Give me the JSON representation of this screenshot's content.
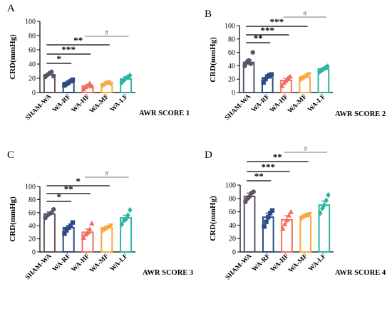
{
  "colors": {
    "SHAM-WA": "#5e5168",
    "WA-RF": "#2b4a87",
    "WA-HF": "#f36c5d",
    "WA-MF": "#f7a83f",
    "WA-LF": "#2bb5a0",
    "axis": "#000000",
    "sig_line": "#000000",
    "hash_line": "#7a7a7a"
  },
  "chart_data": [
    {
      "type": "bar",
      "panel_label": "A",
      "score_label": "AWR SCORE 1",
      "ylabel": "CRD(mmHg)",
      "ylim": [
        0,
        100
      ],
      "yticks": [
        0,
        20,
        40,
        60,
        80,
        100
      ],
      "categories": [
        "SHAM-WA",
        "WA-RF",
        "WA-HF",
        "WA-MF",
        "WA-LF"
      ],
      "values": [
        25,
        14,
        9,
        12,
        19
      ],
      "errors": [
        2,
        2,
        2,
        2,
        3
      ],
      "markers": [
        "circle",
        "square",
        "triangle",
        "triangle-down",
        "diamond"
      ],
      "points": [
        [
          22,
          25,
          27,
          29,
          23
        ],
        [
          10,
          12,
          14,
          16,
          18
        ],
        [
          5,
          8,
          10,
          13,
          9
        ],
        [
          9,
          11,
          13,
          14,
          12
        ],
        [
          14,
          17,
          20,
          22,
          24
        ]
      ],
      "brackets": [
        {
          "from": 0,
          "to": 1,
          "label": "*",
          "y": 41,
          "style": "sig"
        },
        {
          "from": 0,
          "to": 2,
          "label": "***",
          "y": 54,
          "style": "sig"
        },
        {
          "from": 0,
          "to": 3,
          "label": "**",
          "y": 67,
          "style": "sig"
        },
        {
          "from": 2,
          "to": 4,
          "label": "#",
          "y": 79,
          "style": "hash"
        }
      ]
    },
    {
      "type": "bar",
      "panel_label": "B",
      "score_label": "AWR SCORE 2",
      "ylabel": "CRD(mmHg)",
      "ylim": [
        0,
        100
      ],
      "yticks": [
        0,
        20,
        40,
        60,
        80,
        100
      ],
      "categories": [
        "SHAM-WA",
        "WA-RF",
        "WA-HF",
        "WA-MF",
        "WA-LF"
      ],
      "values": [
        45,
        22,
        18,
        23,
        35
      ],
      "errors": [
        4,
        3,
        3,
        2,
        2
      ],
      "markers": [
        "circle",
        "square",
        "triangle",
        "triangle-down",
        "diamond"
      ],
      "points": [
        [
          40,
          45,
          48,
          43,
          60
        ],
        [
          15,
          20,
          24,
          26,
          27
        ],
        [
          10,
          15,
          18,
          22,
          24
        ],
        [
          19,
          21,
          23,
          25,
          27
        ],
        [
          31,
          33,
          35,
          37,
          39
        ]
      ],
      "brackets": [
        {
          "from": 0,
          "to": 1,
          "label": "**",
          "y": 70,
          "style": "sig"
        },
        {
          "from": 0,
          "to": 2,
          "label": "***",
          "y": 81,
          "style": "sig"
        },
        {
          "from": 0,
          "to": 3,
          "label": "***",
          "y": 93,
          "style": "sig"
        },
        {
          "from": 2,
          "to": 4,
          "label": "#",
          "y": 106,
          "style": "hash"
        }
      ]
    },
    {
      "type": "bar",
      "panel_label": "C",
      "score_label": "AWR SCORE 3",
      "ylabel": "CRD(mmHg)",
      "ylim": [
        0,
        100
      ],
      "yticks": [
        0,
        20,
        40,
        60,
        80,
        100
      ],
      "categories": [
        "SHAM-WA",
        "WA-RF",
        "WA-HF",
        "WA-MF",
        "WA-LF"
      ],
      "values": [
        58,
        37,
        30,
        37,
        52
      ],
      "errors": [
        3,
        3,
        5,
        2,
        4
      ],
      "markers": [
        "circle",
        "square",
        "triangle",
        "triangle-down",
        "diamond"
      ],
      "points": [
        [
          52,
          56,
          58,
          60,
          65
        ],
        [
          28,
          33,
          37,
          40,
          45
        ],
        [
          22,
          27,
          30,
          35,
          44
        ],
        [
          32,
          34,
          36,
          38,
          40
        ],
        [
          42,
          48,
          50,
          56,
          64
        ]
      ],
      "brackets": [
        {
          "from": 0,
          "to": 1,
          "label": "*",
          "y": 71,
          "style": "sig"
        },
        {
          "from": 0,
          "to": 2,
          "label": "**",
          "y": 82,
          "style": "sig"
        },
        {
          "from": 0,
          "to": 3,
          "label": "*",
          "y": 93,
          "style": "sig"
        },
        {
          "from": 2,
          "to": 4,
          "label": "#",
          "y": 105,
          "style": "hash"
        }
      ]
    },
    {
      "type": "bar",
      "panel_label": "D",
      "score_label": "AWR SCORE 4",
      "ylabel": "CRD(mmHg)",
      "ylim": [
        0,
        100
      ],
      "yticks": [
        0,
        20,
        40,
        60,
        80,
        100
      ],
      "categories": [
        "SHAM-WA",
        "WA-RF",
        "WA-HF",
        "WA-MF",
        "WA-LF"
      ],
      "values": [
        83,
        52,
        48,
        53,
        70
      ],
      "errors": [
        5,
        6,
        6,
        2,
        6
      ],
      "markers": [
        "circle",
        "square",
        "triangle",
        "triangle-down",
        "diamond"
      ],
      "points": [
        [
          75,
          80,
          83,
          88,
          90
        ],
        [
          38,
          45,
          52,
          58,
          62
        ],
        [
          35,
          42,
          48,
          55,
          60
        ],
        [
          50,
          52,
          54,
          55,
          56
        ],
        [
          58,
          65,
          70,
          77,
          85
        ]
      ],
      "brackets": [
        {
          "from": 0,
          "to": 1,
          "label": "**",
          "y": 100,
          "style": "sig"
        },
        {
          "from": 0,
          "to": 2,
          "label": "***",
          "y": 113,
          "style": "sig"
        },
        {
          "from": 0,
          "to": 3,
          "label": "**",
          "y": 127,
          "style": "sig"
        },
        {
          "from": 2,
          "to": 4,
          "label": "#",
          "y": 140,
          "style": "hash"
        }
      ]
    }
  ]
}
